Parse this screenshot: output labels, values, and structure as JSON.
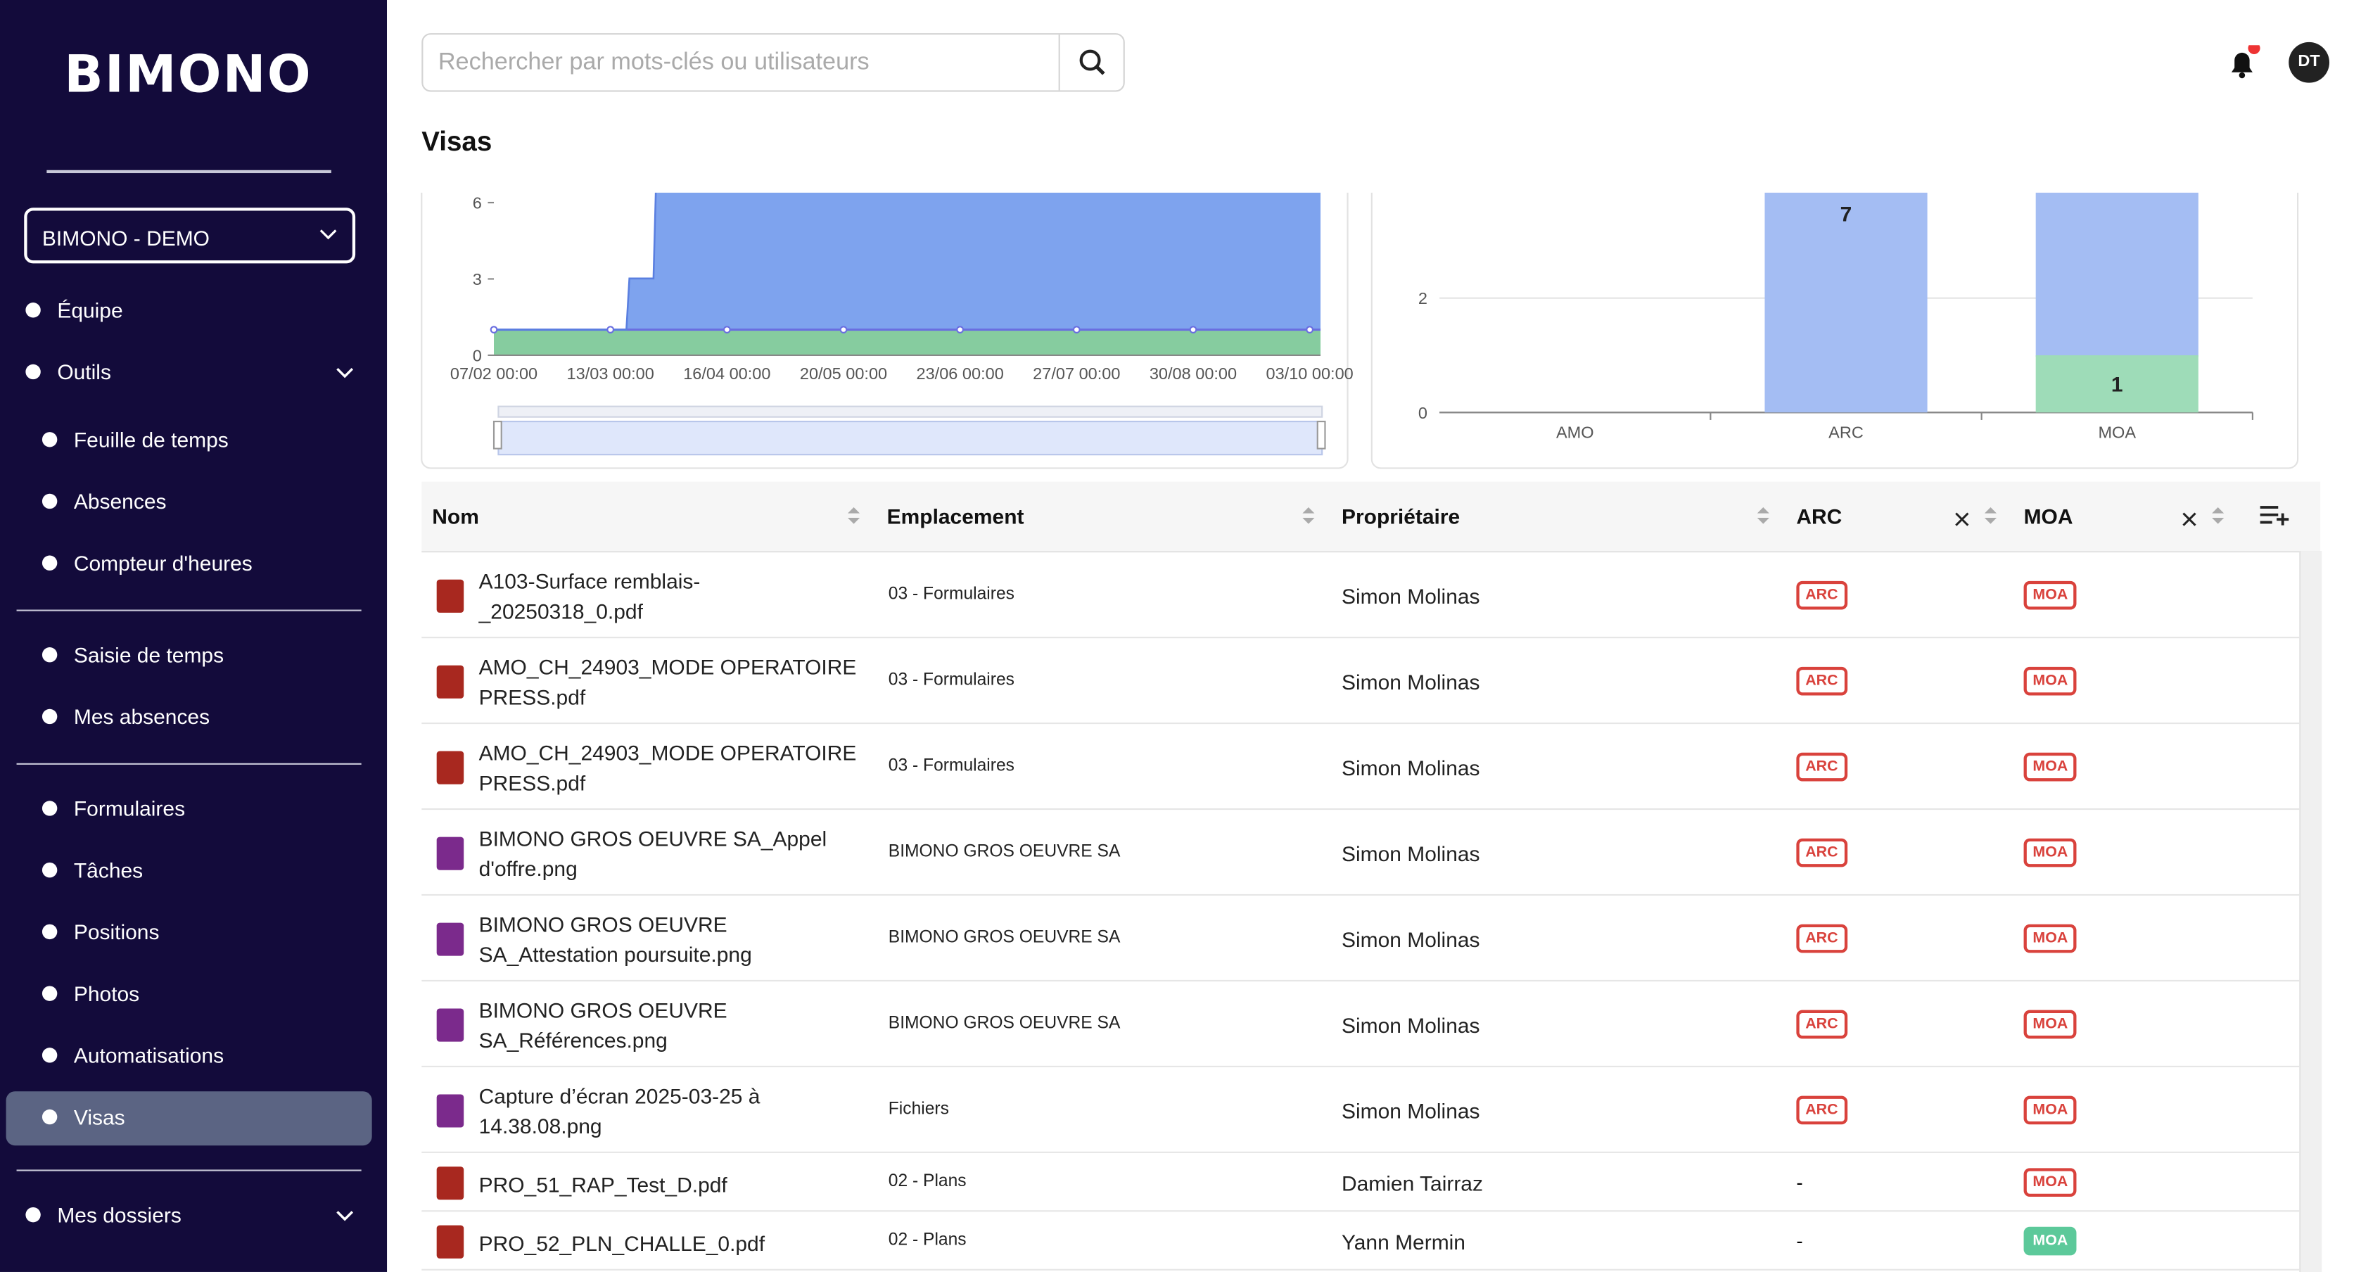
{
  "sidebar": {
    "logo": "BIMONO",
    "project": "BIMONO - DEMO",
    "items": [
      "Équipe",
      "Outils",
      "Feuille de temps",
      "Absences",
      "Compteur d'heures",
      "Saisie de temps",
      "Mes absences",
      "Formulaires",
      "Tâches",
      "Positions",
      "Photos",
      "Automatisations",
      "Visas",
      "Mes dossiers"
    ]
  },
  "header": {
    "search_placeholder": "Rechercher par mots-clés ou utilisateurs",
    "avatar": "DT"
  },
  "page": {
    "title": "Visas"
  },
  "line_chart": {
    "yticks": [
      0,
      3,
      6
    ],
    "xticks": [
      "07/02 00:00",
      "13/03 00:00",
      "16/04 00:00",
      "20/05 00:00",
      "23/06 00:00",
      "27/07 00:00",
      "30/08 00:00",
      "03/10 00:00"
    ]
  },
  "bar_chart": {
    "yticks": [
      0,
      2
    ],
    "categories": [
      "AMO",
      "ARC",
      "MOA"
    ],
    "series": [
      {
        "color": "#a4bdf3",
        "values": [
          null,
          7,
          null
        ]
      },
      {
        "color": "#9edcb8",
        "values": [
          null,
          null,
          1
        ]
      }
    ]
  },
  "table": {
    "columns": [
      "Nom",
      "Emplacement",
      "Propriétaire",
      "ARC",
      "MOA"
    ],
    "rows": [
      {
        "name": "A103-Surface remblais-_20250318_0.pdf",
        "location": "03 - Formulaires",
        "owner": "Simon Molinas",
        "arc": "ARC",
        "moa": "MOA",
        "moa_color": "#d9423c"
      },
      {
        "name": "AMO_CH_24903_MODE OPERATOIRE PRESS.pdf",
        "location": "03 - Formulaires",
        "owner": "Simon Molinas",
        "arc": "ARC",
        "moa": "MOA",
        "moa_color": "#d9423c"
      },
      {
        "name": "AMO_CH_24903_MODE OPERATOIRE PRESS.pdf",
        "location": "03 - Formulaires",
        "owner": "Simon Molinas",
        "arc": "ARC",
        "moa": "MOA",
        "moa_color": "#d9423c"
      },
      {
        "name": "BIMONO GROS OEUVRE SA_Appel d'offre.png",
        "location": "BIMONO GROS OEUVRE SA",
        "owner": "Simon Molinas",
        "arc": "ARC",
        "moa": "MOA",
        "moa_color": "#d9423c"
      },
      {
        "name": "BIMONO GROS OEUVRE SA_Attestation poursuite.png",
        "location": "BIMONO GROS OEUVRE SA",
        "owner": "Simon Molinas",
        "arc": "ARC",
        "moa": "MOA",
        "moa_color": "#d9423c"
      },
      {
        "name": "BIMONO GROS OEUVRE SA_Références.png",
        "location": "BIMONO GROS OEUVRE SA",
        "owner": "Simon Molinas",
        "arc": "ARC",
        "moa": "MOA",
        "moa_color": "#d9423c"
      },
      {
        "name": "Capture d’écran 2025-03-25 à 14.38.08.png",
        "location": "Fichiers",
        "owner": "Simon Molinas",
        "arc": "ARC",
        "moa": "MOA",
        "moa_color": "#d9423c"
      },
      {
        "name": "PRO_51_RAP_Test_D.pdf",
        "location": "02 - Plans",
        "owner": "Damien Tairraz",
        "arc": "-",
        "moa": "MOA",
        "moa_color": "#d9423c"
      },
      {
        "name": "PRO_52_PLN_CHALLE_0.pdf",
        "location": "02 - Plans",
        "owner": "Yann Mermin",
        "arc": "-",
        "moa": "MOA",
        "moa_color": "#5cc99a"
      }
    ]
  }
}
